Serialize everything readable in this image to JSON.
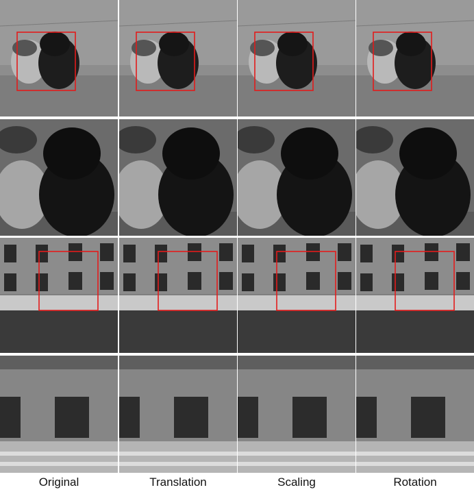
{
  "columns": [
    "Original",
    "Translation",
    "Scaling",
    "Rotation"
  ],
  "rows": [
    {
      "scene": "teddy-bears",
      "view": "full",
      "has_box": true
    },
    {
      "scene": "teddy-bears",
      "view": "zoom",
      "has_box": false
    },
    {
      "scene": "building",
      "view": "full",
      "has_box": true
    },
    {
      "scene": "building",
      "view": "zoom",
      "has_box": false
    }
  ],
  "colors": {
    "box": "#e31b1b",
    "background": "#ffffff",
    "label_text": "#111111"
  }
}
